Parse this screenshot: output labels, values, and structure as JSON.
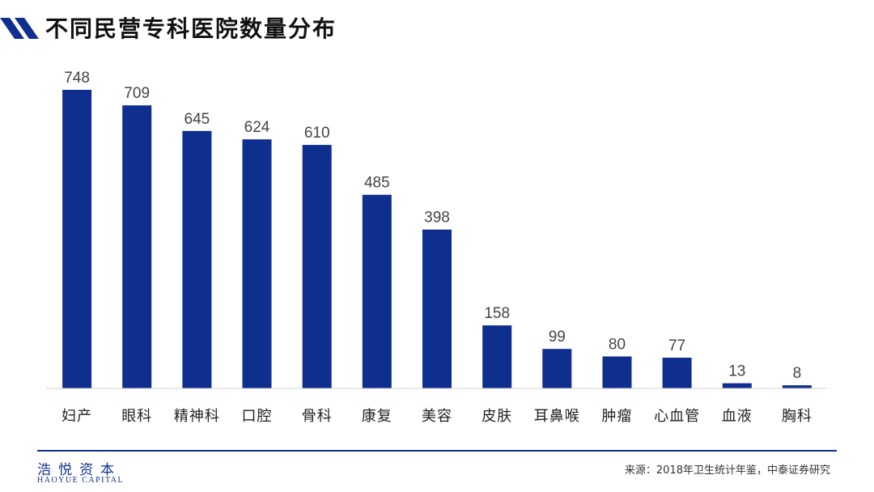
{
  "title": "不同民营专科医院数量分布",
  "chart_data": {
    "type": "bar",
    "categories": [
      "妇产",
      "眼科",
      "精神科",
      "口腔",
      "骨科",
      "康复",
      "美容",
      "皮肤",
      "耳鼻喉",
      "肿瘤",
      "心血管",
      "血液",
      "胸科"
    ],
    "values": [
      748,
      709,
      645,
      624,
      610,
      485,
      398,
      158,
      99,
      80,
      77,
      13,
      8
    ],
    "ylim": [
      0,
      748
    ],
    "grid": false,
    "bar_color": "#0f2f8f",
    "label_color": "#444444"
  },
  "footer": {
    "logo_cn": "浩悦资本",
    "logo_en": "HAOYUE CAPITAL",
    "source": "来源：2018年卫生统计年鉴，中泰证券研究"
  },
  "colors": {
    "accent": "#0f2f8f"
  }
}
